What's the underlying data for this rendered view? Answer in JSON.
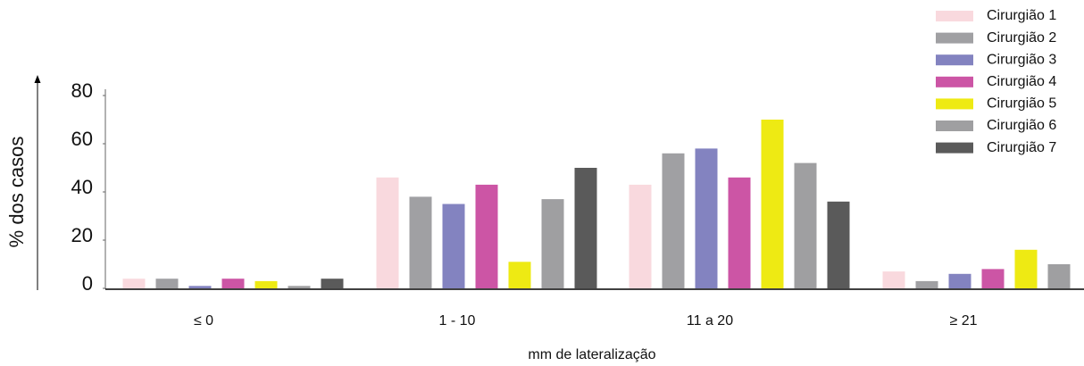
{
  "chart_data": {
    "type": "bar",
    "x_label": "mm de lateralização",
    "y_label": "% dos casos",
    "categories": [
      "≤ 0",
      "1 - 10",
      "11 a 20",
      "≥ 21"
    ],
    "series": [
      {
        "name": "Cirurgião 1",
        "color": "#f9d9de",
        "values": [
          4,
          46,
          43,
          7
        ]
      },
      {
        "name": "Cirurgião 2",
        "color": "#a0a0a3",
        "values": [
          4,
          38,
          56,
          3
        ]
      },
      {
        "name": "Cirurgião 3",
        "color": "#8383c0",
        "values": [
          1,
          35,
          58,
          6
        ]
      },
      {
        "name": "Cirurgião 4",
        "color": "#cc55a5",
        "values": [
          4,
          43,
          46,
          8
        ]
      },
      {
        "name": "Cirurgião 5",
        "color": "#eeea13",
        "values": [
          3,
          11,
          70,
          16
        ]
      },
      {
        "name": "Cirurgião 6",
        "color": "#9f9fa1",
        "values": [
          1,
          37,
          52,
          10
        ]
      },
      {
        "name": "Cirurgião 7",
        "color": "#5a5a5a",
        "values": [
          4,
          50,
          36,
          null
        ]
      }
    ],
    "ylim": [
      0,
      80
    ],
    "yticks": [
      0,
      20,
      40,
      60,
      80
    ],
    "legend": "top-right"
  }
}
